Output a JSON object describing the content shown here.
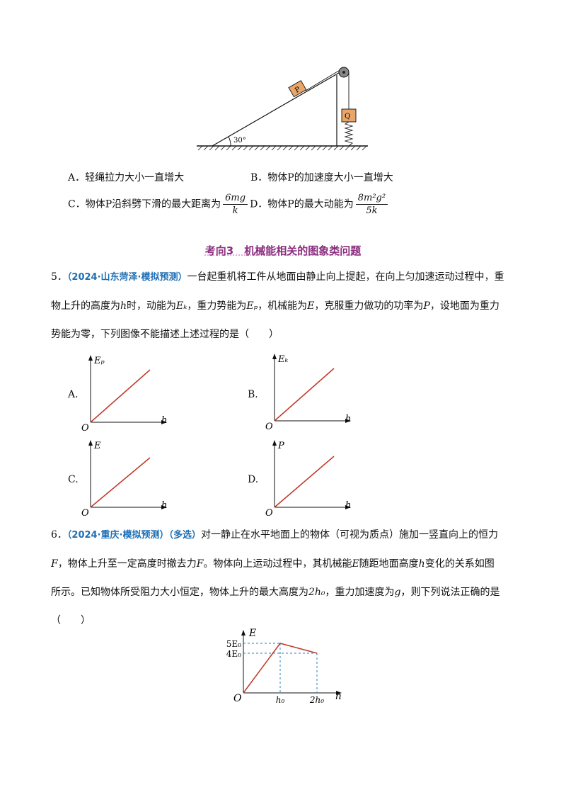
{
  "figure_top": {
    "block_label": "P",
    "hanging_label": "Q",
    "angle_label": "30°"
  },
  "q4_options": {
    "A": "A．轻绳拉力大小一直增大",
    "B": "B．物体P的加速度大小一直增大",
    "C_prefix": "C．物体P沿斜劈下滑的最大距离为",
    "C_num": "6mg",
    "C_den": "k",
    "D_prefix": "D．物体P的最大动能为",
    "D_num": "8m²g²",
    "D_den": "5k"
  },
  "section": {
    "title": "考向3　机械能相关的图象类问题"
  },
  "q5": {
    "number": "5．",
    "source": "（2024·山东菏泽·模拟预测）",
    "text_1": "一台起重机将工件从地面由静止向上提起，在向上匀加速运动过程中，重",
    "text_2a": "物上升的高度为",
    "text_2b": "时，动能为",
    "text_2c": "，重力势能为",
    "text_2d": "，机械能为",
    "text_2e": "，克服重力做功的功率为",
    "text_2f": "，设地面为重力",
    "text_3": "势能为零，下列图像不能描述上述过程的是（　　）",
    "var_h": "h",
    "var_Ek": "Eₖ",
    "var_Ep": "Eₚ",
    "var_E": "E",
    "var_P": "P",
    "graphs": [
      {
        "option": "A.",
        "ylabel": "Eₚ",
        "xlabel": "h",
        "origin": "O"
      },
      {
        "option": "B.",
        "ylabel": "Eₖ",
        "xlabel": "h",
        "origin": "O"
      },
      {
        "option": "C.",
        "ylabel": "E",
        "xlabel": "h",
        "origin": "O"
      },
      {
        "option": "D.",
        "ylabel": "P",
        "xlabel": "h",
        "origin": "O"
      }
    ],
    "line_color": "#c0392b"
  },
  "q6": {
    "number": "6．",
    "source": "（2024·重庆·模拟预测）（多选）",
    "text_1": "对一静止在水平地面上的物体（可视为质点）施加一竖直向上的恒力",
    "text_2a": "，物体上升至一定高度时撤去力",
    "text_2b": "。物体向上运动过程中，其机械能",
    "text_2c": "随距地面高度",
    "text_2d": "变化的关系如图",
    "text_3a": "所示。已知物体所受阻力大小恒定，物体上升的最大高度为",
    "text_3b": "，重力加速度为",
    "text_3c": "，则下列说法正确的是",
    "text_4": "（　　）",
    "var_F": "F",
    "var_E": "E",
    "var_h": "h",
    "var_2h0": "2h₀",
    "var_g": "g",
    "chart_data": {
      "type": "line",
      "title": "",
      "xlabel": "h",
      "ylabel": "E",
      "x": [
        "0",
        "h₀",
        "2h₀"
      ],
      "y": [
        0,
        5,
        4
      ],
      "y_tick_labels": [
        "5E₀",
        "4E₀"
      ],
      "x_tick_labels": [
        "h₀",
        "2h₀"
      ],
      "origin": "O",
      "line_color": "#c0392b",
      "guide_color": "#2980b9"
    }
  }
}
